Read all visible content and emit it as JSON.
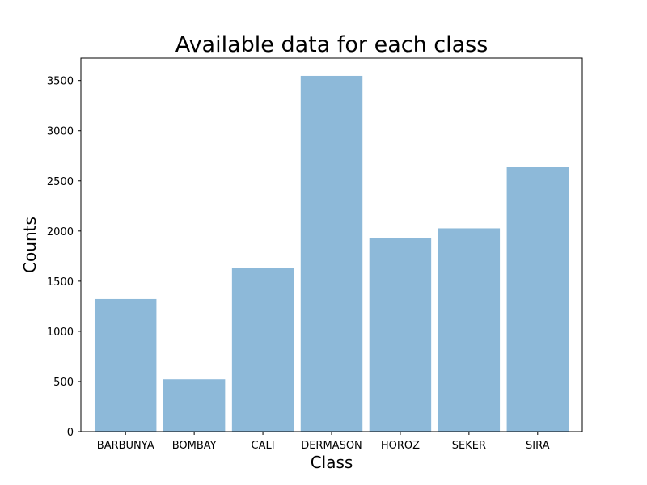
{
  "chart_data": {
    "type": "bar",
    "title": "Available data for each class",
    "xlabel": "Class",
    "ylabel": "Counts",
    "categories": [
      "BARBUNYA",
      "BOMBAY",
      "CALI",
      "DERMASON",
      "HOROZ",
      "SEKER",
      "SIRA"
    ],
    "values": [
      1322,
      522,
      1630,
      3546,
      1928,
      2027,
      2636
    ],
    "ylim": [
      0,
      3723
    ],
    "yticks": [
      0,
      500,
      1000,
      1500,
      2000,
      2500,
      3000,
      3500
    ],
    "grid": false,
    "bar_color": "#8db9d9"
  }
}
